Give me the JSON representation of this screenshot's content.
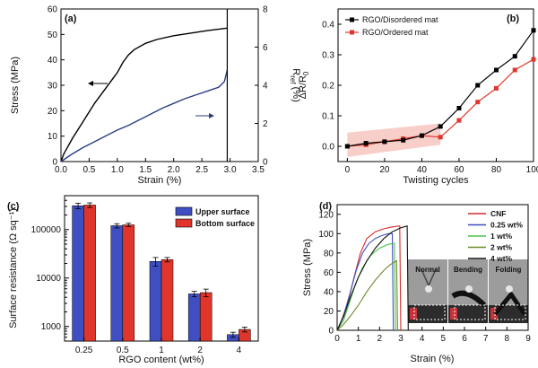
{
  "chart_data": [
    {
      "panel": "(a)",
      "type": "line",
      "xlabel": "Strain (%)",
      "ylabel": "Stress (MPa)",
      "y2label_main": "R",
      "y2label_sub": "ref",
      "y2label_unit": " (%)",
      "xlim": [
        0,
        3.5
      ],
      "ylim": [
        0,
        60
      ],
      "y2lim": [
        0,
        8
      ],
      "xticks": [
        "0.0",
        "0.5",
        "1.0",
        "1.5",
        "2.0",
        "2.5",
        "3.0",
        "3.5"
      ],
      "yticks": [
        "0",
        "10",
        "20",
        "30",
        "40",
        "50",
        "60"
      ],
      "y2ticks": [
        "0",
        "2",
        "4",
        "6",
        "8"
      ],
      "series": [
        {
          "axis": "left",
          "color": "#000000",
          "x": [
            0,
            0.05,
            0.1,
            0.2,
            0.4,
            0.6,
            0.8,
            1.0,
            1.1,
            1.2,
            1.3,
            1.5,
            1.7,
            2.0,
            2.3,
            2.6,
            2.95
          ],
          "y": [
            0,
            3,
            5,
            9,
            16,
            23,
            29,
            35,
            39,
            42,
            44,
            46.5,
            48,
            49.5,
            50.5,
            51.5,
            52.5
          ]
        },
        {
          "axis": "right",
          "color": "#2b3d80",
          "x": [
            0,
            0.2,
            0.4,
            0.6,
            0.8,
            1.0,
            1.2,
            1.4,
            1.6,
            1.8,
            2.0,
            2.2,
            2.4,
            2.6,
            2.8,
            2.9,
            2.95
          ],
          "y": [
            0,
            0.4,
            0.75,
            1.05,
            1.35,
            1.65,
            1.9,
            2.2,
            2.5,
            2.8,
            3.05,
            3.3,
            3.5,
            3.7,
            3.9,
            4.2,
            4.8
          ]
        }
      ],
      "vline_x": 2.95
    },
    {
      "panel": "(b)",
      "type": "line",
      "xlabel": "Twisting cycles",
      "ylabel_main": "ΔR/R",
      "ylabel_sub": "0",
      "xlim": [
        -5,
        100
      ],
      "ylim": [
        -0.05,
        0.45
      ],
      "xticks": [
        "0",
        "20",
        "40",
        "60",
        "80",
        "100"
      ],
      "yticks": [
        "0.0",
        "0.1",
        "0.2",
        "0.3",
        "0.4"
      ],
      "series": [
        {
          "name": "RGO/Disordered mat",
          "color": "#000000",
          "x": [
            0,
            10,
            20,
            30,
            40,
            50,
            60,
            70,
            80,
            90,
            100
          ],
          "y": [
            0.0,
            0.01,
            0.015,
            0.02,
            0.035,
            0.065,
            0.125,
            0.2,
            0.25,
            0.295,
            0.38
          ]
        },
        {
          "name": "RGO/Ordered mat",
          "color": "#e0352b",
          "x": [
            0,
            10,
            20,
            30,
            40,
            50,
            60,
            70,
            80,
            90,
            100
          ],
          "y": [
            0.0,
            0.005,
            0.015,
            0.025,
            0.035,
            0.03,
            0.085,
            0.145,
            0.19,
            0.25,
            0.285
          ]
        }
      ],
      "band": {
        "color": "#f6c6be",
        "x": [
          0,
          50
        ],
        "lower_start": -0.035,
        "lower_end": 0.005,
        "upper_start": 0.045,
        "upper_end": 0.075
      }
    },
    {
      "panel": "(c)",
      "type": "bar",
      "xlabel": "RGO content (wt%)",
      "ylabel": "Surface resistance (Ω sq⁻¹)",
      "scale": "log",
      "ylim": [
        500,
        500000
      ],
      "yticks": [
        1000,
        10000,
        100000
      ],
      "ytick_labels": [
        "1000",
        "10000",
        "100000"
      ],
      "categories": [
        "0.25",
        "0.5",
        "1",
        "2",
        "4"
      ],
      "series": [
        {
          "name": "Upper surface",
          "color": "#3f4fc2",
          "values": [
            310000,
            120000,
            22000,
            4700,
            680
          ],
          "errors": [
            40000,
            12000,
            4500,
            600,
            80
          ]
        },
        {
          "name": "Bottom surface",
          "color": "#e0352b",
          "values": [
            320000,
            125000,
            24000,
            5000,
            870
          ],
          "errors": [
            35000,
            10000,
            2500,
            900,
            100
          ]
        }
      ]
    },
    {
      "panel": "(d)",
      "type": "line",
      "xlabel": "Strain (%)",
      "ylabel": "Stress (MPa)",
      "xlim": [
        0,
        9
      ],
      "ylim": [
        0,
        130
      ],
      "xticks": [
        "0",
        "1",
        "2",
        "3",
        "4",
        "5",
        "6",
        "7",
        "8",
        "9"
      ],
      "yticks": [
        "0",
        "20",
        "40",
        "60",
        "80",
        "100",
        "120"
      ],
      "series": [
        {
          "name": "CNF",
          "color": "#d62a2a",
          "x": [
            0,
            0.2,
            0.5,
            0.8,
            1.1,
            1.4,
            1.8,
            2.2,
            2.6,
            2.95,
            3.0
          ],
          "y": [
            0,
            10,
            28,
            55,
            80,
            95,
            102,
            105,
            107,
            108,
            0
          ]
        },
        {
          "name": "0.25 wt%",
          "color": "#3f4fc2",
          "x": [
            0,
            0.3,
            0.6,
            0.9,
            1.2,
            1.5,
            1.8,
            2.1,
            2.4,
            2.6,
            2.65
          ],
          "y": [
            0,
            15,
            38,
            62,
            80,
            90,
            95,
            98,
            100,
            100,
            0
          ]
        },
        {
          "name": "1 wt%",
          "color": "#4fc24f",
          "x": [
            0,
            0.3,
            0.6,
            0.9,
            1.2,
            1.6,
            2.0,
            2.4,
            2.7,
            2.75
          ],
          "y": [
            0,
            10,
            30,
            50,
            65,
            78,
            85,
            89,
            90,
            0
          ]
        },
        {
          "name": "2 wt%",
          "color": "#6b8a2b",
          "x": [
            0,
            0.3,
            0.6,
            1.0,
            1.4,
            1.8,
            2.2,
            2.5,
            2.8,
            2.85
          ],
          "y": [
            0,
            6,
            14,
            26,
            40,
            52,
            62,
            68,
            72,
            0
          ]
        },
        {
          "name": "4 wt%",
          "color": "#111111",
          "x": [
            0,
            0.3,
            0.6,
            1.0,
            1.4,
            1.8,
            2.2,
            2.6,
            3.0,
            3.3,
            3.35
          ],
          "y": [
            0,
            14,
            33,
            55,
            72,
            85,
            95,
            102,
            106,
            108,
            0
          ]
        }
      ],
      "inset_labels": [
        "Normal",
        "Bending",
        "Folding"
      ]
    }
  ]
}
